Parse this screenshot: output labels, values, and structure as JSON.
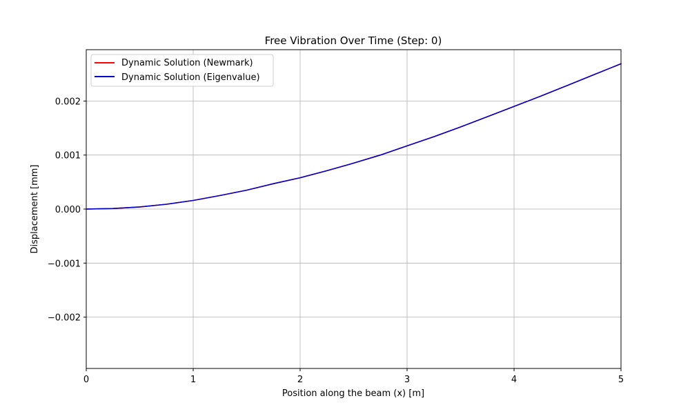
{
  "chart_data": {
    "type": "line",
    "title": "Free Vibration Over Time (Step: 0)",
    "xlabel": "Position along the beam (x) [m]",
    "ylabel": "Displacement [mm]",
    "xlim": [
      0,
      5
    ],
    "ylim": [
      -0.00295,
      0.00295
    ],
    "xticks": [
      0,
      1,
      2,
      3,
      4,
      5
    ],
    "xtick_labels": [
      "0",
      "1",
      "2",
      "3",
      "4",
      "5"
    ],
    "yticks": [
      -0.002,
      -0.001,
      0.0,
      0.001,
      0.002
    ],
    "ytick_labels": [
      "−0.002",
      "−0.001",
      "0.000",
      "0.001",
      "0.002"
    ],
    "grid": true,
    "legend_position": "top-left",
    "x": [
      0,
      0.25,
      0.5,
      0.75,
      1,
      1.25,
      1.5,
      1.75,
      2,
      2.25,
      2.5,
      2.75,
      3,
      3.25,
      3.5,
      3.75,
      4,
      4.25,
      4.5,
      4.75,
      5
    ],
    "series": [
      {
        "name": "Dynamic Solution (Newmark)",
        "color": "#ff0000",
        "values": [
          0,
          1e-05,
          4e-05,
          9e-05,
          0.00016,
          0.00025,
          0.00035,
          0.00047,
          0.00058,
          0.00071,
          0.00085,
          0.001,
          0.00117,
          0.00134,
          0.00152,
          0.00171,
          0.0019,
          0.00209,
          0.00229,
          0.00249,
          0.00269
        ]
      },
      {
        "name": "Dynamic Solution (Eigenvalue)",
        "color": "#0000cc",
        "values": [
          0,
          1e-05,
          4e-05,
          9e-05,
          0.00016,
          0.00025,
          0.00035,
          0.00047,
          0.00058,
          0.00071,
          0.00085,
          0.001,
          0.00117,
          0.00134,
          0.00152,
          0.00171,
          0.0019,
          0.00209,
          0.00229,
          0.00249,
          0.00269
        ]
      }
    ]
  }
}
